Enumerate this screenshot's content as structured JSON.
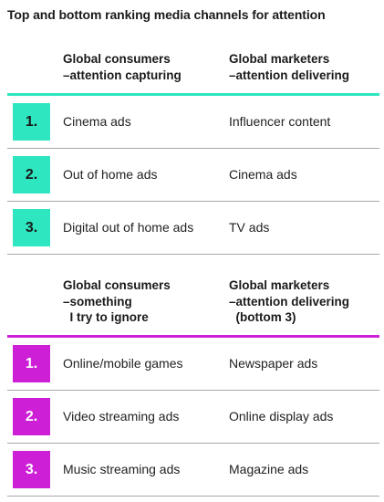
{
  "title": "Top and bottom ranking media channels for attention",
  "colors": {
    "top_accent": "#2ee6c0",
    "bottom_accent": "#cc1fd6",
    "row_divider": "#a9a9a9",
    "text": "#1a1a1a"
  },
  "top": {
    "col1_header": "Global consumers\n–attention capturing",
    "col2_header": "Global marketers\n–attention delivering",
    "rows": [
      {
        "rank": "1.",
        "consumers": "Cinema ads",
        "marketers": "Influencer content"
      },
      {
        "rank": "2.",
        "consumers": "Out of home ads",
        "marketers": "Cinema ads"
      },
      {
        "rank": "3.",
        "consumers": "Digital out of home ads",
        "marketers": "TV ads"
      }
    ]
  },
  "bottom": {
    "col1_header": "Global consumers\n–something\n  I try to ignore",
    "col2_header": "Global marketers\n–attention delivering\n  (bottom 3)",
    "rows": [
      {
        "rank": "1.",
        "consumers": "Online/mobile games",
        "marketers": "Newspaper ads"
      },
      {
        "rank": "2.",
        "consumers": "Video streaming ads",
        "marketers": "Online display ads"
      },
      {
        "rank": "3.",
        "consumers": "Music streaming ads",
        "marketers": "Magazine ads"
      }
    ]
  }
}
